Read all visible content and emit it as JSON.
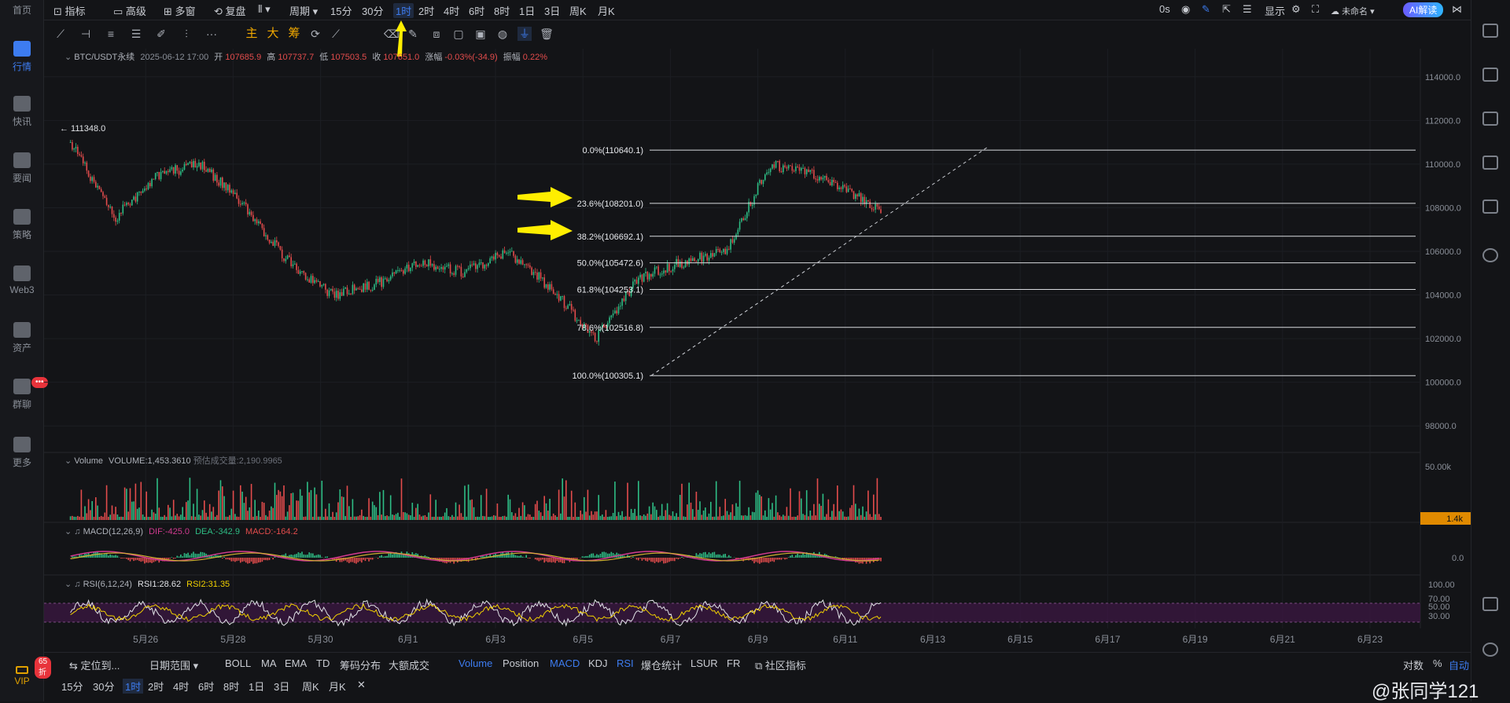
{
  "sidebar": {
    "home": "首页",
    "items": [
      {
        "label": "行情",
        "icon": "bar-chart-icon"
      },
      {
        "label": "快讯",
        "icon": "news-icon"
      },
      {
        "label": "要闻",
        "icon": "document-icon"
      },
      {
        "label": "策略",
        "icon": "robot-icon"
      },
      {
        "label": "Web3",
        "icon": "web3-icon"
      },
      {
        "label": "资产",
        "icon": "wallet-icon"
      },
      {
        "label": "群聊",
        "icon": "chat-icon"
      },
      {
        "label": "更多",
        "icon": "grid-icon"
      }
    ],
    "chat_badge": "•••",
    "vip_label": "VIP",
    "vip_badge": "65折"
  },
  "topbar": {
    "indicators": "指标",
    "advanced": "高级",
    "multi_window": "多窗",
    "replay": "复盘",
    "period": "周期",
    "intervals": [
      "15分",
      "30分",
      "1时",
      "2时",
      "4时",
      "6时",
      "8时",
      "1日",
      "3日",
      "周K",
      "月K"
    ],
    "active_interval": "1时",
    "latency": "0s",
    "display": "显示",
    "unnamed": "未命名",
    "ai": "AI解读"
  },
  "drawbar": {
    "main": "主",
    "big": "大",
    "chips": "筹",
    "more": "···"
  },
  "legend": {
    "symbol": "BTC/USDT永续",
    "datetime": "2025-06-12 17:00",
    "open_label": "开",
    "open": "107685.9",
    "high_label": "高",
    "high": "107737.7",
    "low_label": "低",
    "low": "107503.5",
    "close_label": "收",
    "close": "107651.0",
    "change_label": "涨幅",
    "change": "-0.03%(-34.9)",
    "amp_label": "振幅",
    "amp": "0.22%",
    "max_marker": "← 111348.0"
  },
  "volume_legend": {
    "label": "Volume",
    "volume": "VOLUME:1,453.3610",
    "forecast_label": "预估成交量:",
    "forecast": "2,190.9965"
  },
  "macd_legend": {
    "label": "MACD(12,26,9)",
    "dif": "DIF:-425.0",
    "dea": "DEA:-342.9",
    "macd": "MACD:-164.2"
  },
  "rsi_legend": {
    "label": "RSI(6,12,24)",
    "rsi1": "RSI1:28.62",
    "rsi2": "RSI2:31.35"
  },
  "chart_data": {
    "type": "line",
    "price_ticks": [
      "114000.0",
      "112000.0",
      "110000.0",
      "108000.0",
      "106000.0",
      "104000.0",
      "102000.0",
      "100000.0",
      "98000.0"
    ],
    "price_tick_values": [
      114000,
      112000,
      110000,
      108000,
      106000,
      104000,
      102000,
      100000,
      98000
    ],
    "ylim": [
      97000,
      115000
    ],
    "volume_tick": "50.00k",
    "volume_current": "1.4k",
    "macd_tick": "0.0",
    "rsi_ticks": [
      "100.00",
      "70.00",
      "50.00",
      "30.00"
    ],
    "date_ticks": [
      "5月26",
      "5月28",
      "5月30",
      "6月1",
      "6月3",
      "6月5",
      "6月7",
      "6月9",
      "6月11",
      "6月13",
      "6月15",
      "6月17",
      "6月19",
      "6月21",
      "6月23"
    ],
    "price_path": {
      "dates": [
        "5月25",
        "5月26",
        "5月27",
        "5月28",
        "5月29",
        "5月30",
        "5月31",
        "6月1",
        "6月2",
        "6月3",
        "6月4",
        "6月5",
        "6月6",
        "6月7",
        "6月8",
        "6月9",
        "6月10",
        "6月11",
        "6月12",
        "6月12"
      ],
      "values": [
        111000,
        107500,
        109500,
        110000,
        108000,
        105500,
        104000,
        104500,
        105500,
        105000,
        106000,
        104300,
        102000,
        104800,
        105500,
        106000,
        110000,
        109500,
        108500,
        107651
      ]
    },
    "fib_levels": [
      {
        "label": "0.0%(110640.1)",
        "value": 110640.1
      },
      {
        "label": "23.6%(108201.0)",
        "value": 108201.0
      },
      {
        "label": "38.2%(106692.1)",
        "value": 106692.1
      },
      {
        "label": "50.0%(105472.6)",
        "value": 105472.6
      },
      {
        "label": "61.8%(104253.1)",
        "value": 104253.1
      },
      {
        "label": "78.6%(102516.8)",
        "value": 102516.8
      },
      {
        "label": "100.0%(100305.1)",
        "value": 100305.1
      }
    ],
    "grid": true
  },
  "bottom1": {
    "locate": "定位到...",
    "date_range": "日期范围",
    "indicators": [
      "BOLL",
      "MA",
      "EMA",
      "TD",
      "筹码分布",
      "大额成交"
    ],
    "sub_indicators": [
      "Volume",
      "Position",
      "MACD",
      "KDJ",
      "RSI",
      "爆仓统计",
      "LSUR",
      "FR"
    ],
    "community": "社区指标",
    "log": "对数",
    "percent": "%",
    "auto": "自动"
  },
  "bottom2": {
    "intervals": [
      "15分",
      "30分",
      "1时",
      "2时",
      "4时",
      "6时",
      "8时",
      "1日",
      "3日",
      "周K",
      "月K"
    ],
    "active": "1时",
    "close": "✕"
  },
  "price_scale_right": {
    "chips": "筹",
    "burst": "爆"
  },
  "watermark": "@张同学121",
  "colors": {
    "up": "#2ebd85",
    "down": "#e34c4c",
    "accent": "#3d7cf0",
    "annotation_arrow": "#ffee00"
  }
}
